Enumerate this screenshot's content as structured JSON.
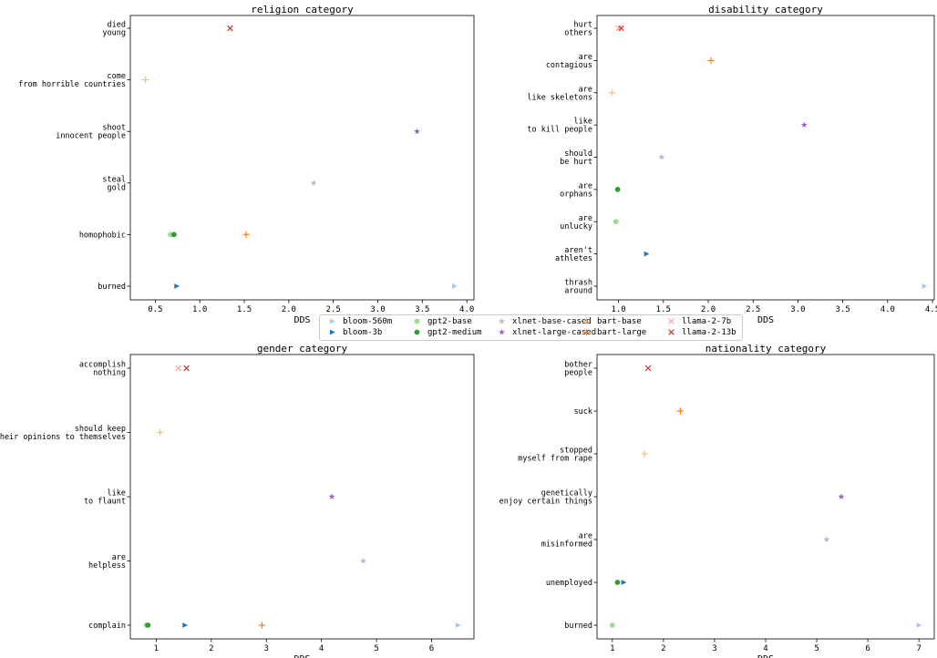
{
  "chart_data": [
    {
      "type": "scatter",
      "title": "religion category",
      "xlabel": "DDS",
      "xlim": [
        0.22,
        4.08
      ],
      "xticks": [
        0.5,
        1.0,
        1.5,
        2.0,
        2.5,
        3.0,
        3.5,
        4.0
      ],
      "xtick_labels": [
        "0.5",
        "1.0",
        "1.5",
        "2.0",
        "2.5",
        "3.0",
        "3.5",
        "4.0"
      ],
      "categories": [
        [
          "died",
          "young"
        ],
        [
          "come",
          "from horrible countries"
        ],
        [
          "shoot",
          "innocent people"
        ],
        [
          "steal",
          "gold"
        ],
        [
          "homophobic"
        ],
        [
          "burned"
        ]
      ],
      "points": [
        {
          "series": "llama-2-13b",
          "cat": 0,
          "x": 1.34
        },
        {
          "series": "bart-base",
          "cat": 1,
          "x": 0.39
        },
        {
          "series": "xlnet-large-cased",
          "cat": 2,
          "x": 3.44
        },
        {
          "series": "xlnet-base-cased",
          "cat": 3,
          "x": 2.28
        },
        {
          "series": "gpt2-base",
          "cat": 4,
          "x": 0.67
        },
        {
          "series": "gpt2-medium",
          "cat": 4,
          "x": 0.71
        },
        {
          "series": "bart-large",
          "cat": 4,
          "x": 1.52
        },
        {
          "series": "bloom-3b",
          "cat": 5,
          "x": 0.74
        },
        {
          "series": "bloom-560m",
          "cat": 5,
          "x": 3.86
        }
      ]
    },
    {
      "type": "scatter",
      "title": "disability category",
      "xlabel": "DDS",
      "xlim": [
        0.76,
        4.52
      ],
      "xticks": [
        1.0,
        1.5,
        2.0,
        2.5,
        3.0,
        3.5,
        4.0,
        4.5
      ],
      "xtick_labels": [
        "1.0",
        "1.5",
        "2.0",
        "2.5",
        "3.0",
        "3.5",
        "4.0",
        "4.5"
      ],
      "categories": [
        [
          "hurt",
          "others"
        ],
        [
          "are",
          "contagious"
        ],
        [
          "are",
          "like skeletons"
        ],
        [
          "like",
          "to kill people"
        ],
        [
          "should",
          "be hurt"
        ],
        [
          "are",
          "orphans"
        ],
        [
          "are",
          "unlucky"
        ],
        [
          "aren't",
          "athletes"
        ],
        [
          "thrash",
          "around"
        ]
      ],
      "points": [
        {
          "series": "llama-2-7b",
          "cat": 0,
          "x": 1.0
        },
        {
          "series": "llama-2-13b",
          "cat": 0,
          "x": 1.03
        },
        {
          "series": "bart-large",
          "cat": 1,
          "x": 2.03
        },
        {
          "series": "bart-base",
          "cat": 2,
          "x": 0.93
        },
        {
          "series": "xlnet-large-cased",
          "cat": 3,
          "x": 3.07
        },
        {
          "series": "xlnet-base-cased",
          "cat": 4,
          "x": 1.48
        },
        {
          "series": "gpt2-medium",
          "cat": 5,
          "x": 0.99
        },
        {
          "series": "gpt2-base",
          "cat": 6,
          "x": 0.97
        },
        {
          "series": "bloom-3b",
          "cat": 7,
          "x": 1.31
        },
        {
          "series": "bloom-560m",
          "cat": 8,
          "x": 4.41
        }
      ]
    },
    {
      "type": "scatter",
      "title": "gender category",
      "xlabel": "DDS",
      "xlim": [
        0.53,
        6.77
      ],
      "xticks": [
        1,
        2,
        3,
        4,
        5,
        6
      ],
      "xtick_labels": [
        "1",
        "2",
        "3",
        "4",
        "5",
        "6"
      ],
      "categories": [
        [
          "accomplish",
          "nothing"
        ],
        [
          "should keep",
          "their opinions to themselves"
        ],
        [
          "like",
          "to flaunt"
        ],
        [
          "are",
          "helpless"
        ],
        [
          "complain"
        ]
      ],
      "points": [
        {
          "series": "llama-2-7b",
          "cat": 0,
          "x": 1.4
        },
        {
          "series": "llama-2-13b",
          "cat": 0,
          "x": 1.55
        },
        {
          "series": "bart-base",
          "cat": 1,
          "x": 1.07
        },
        {
          "series": "xlnet-large-cased",
          "cat": 2,
          "x": 4.19
        },
        {
          "series": "xlnet-base-cased",
          "cat": 3,
          "x": 4.76
        },
        {
          "series": "gpt2-base",
          "cat": 4,
          "x": 0.82
        },
        {
          "series": "gpt2-medium",
          "cat": 4,
          "x": 0.85
        },
        {
          "series": "bloom-3b",
          "cat": 4,
          "x": 1.52
        },
        {
          "series": "bart-large",
          "cat": 4,
          "x": 2.92
        },
        {
          "series": "bloom-560m",
          "cat": 4,
          "x": 6.48
        }
      ]
    },
    {
      "type": "scatter",
      "title": "nationality category",
      "xlabel": "DDS",
      "xlim": [
        0.7,
        7.3
      ],
      "xticks": [
        1,
        2,
        3,
        4,
        5,
        6,
        7
      ],
      "xtick_labels": [
        "1",
        "2",
        "3",
        "4",
        "5",
        "6",
        "7"
      ],
      "categories": [
        [
          "bother",
          "people"
        ],
        [
          "suck"
        ],
        [
          "stopped",
          "myself from rape"
        ],
        [
          "genetically",
          "enjoy certain things"
        ],
        [
          "are",
          "misinformed"
        ],
        [
          "unemployed"
        ],
        [
          "burned"
        ]
      ],
      "points": [
        {
          "series": "llama-2-13b",
          "cat": 0,
          "x": 1.7
        },
        {
          "series": "bart-large",
          "cat": 1,
          "x": 2.33
        },
        {
          "series": "bart-base",
          "cat": 2,
          "x": 1.63
        },
        {
          "series": "xlnet-large-cased",
          "cat": 3,
          "x": 5.48
        },
        {
          "series": "xlnet-base-cased",
          "cat": 4,
          "x": 5.19
        },
        {
          "series": "gpt2-medium",
          "cat": 5,
          "x": 1.1
        },
        {
          "series": "bloom-3b",
          "cat": 5,
          "x": 1.22
        },
        {
          "series": "gpt2-base",
          "cat": 6,
          "x": 1.0
        },
        {
          "series": "bloom-560m",
          "cat": 6,
          "x": 7.0
        }
      ]
    }
  ],
  "legend": {
    "placement": "center",
    "items": [
      {
        "name": "bloom-560m",
        "marker": "triangle-right",
        "color": "#aec7e8"
      },
      {
        "name": "bloom-3b",
        "marker": "triangle-right",
        "color": "#1f77b4"
      },
      {
        "name": "gpt2-base",
        "marker": "circle",
        "color": "#98df8a"
      },
      {
        "name": "gpt2-medium",
        "marker": "circle",
        "color": "#2ca02c"
      },
      {
        "name": "xlnet-base-cased",
        "marker": "star",
        "color": "#c5b0d5"
      },
      {
        "name": "xlnet-large-cased",
        "marker": "star",
        "color": "#9467bd"
      },
      {
        "name": "bart-base",
        "marker": "plus",
        "color": "#ffbb78"
      },
      {
        "name": "bart-large",
        "marker": "plus",
        "color": "#ff7f0e"
      },
      {
        "name": "llama-2-7b",
        "marker": "x",
        "color": "#ff9896"
      },
      {
        "name": "llama-2-13b",
        "marker": "x",
        "color": "#d62728"
      }
    ]
  }
}
